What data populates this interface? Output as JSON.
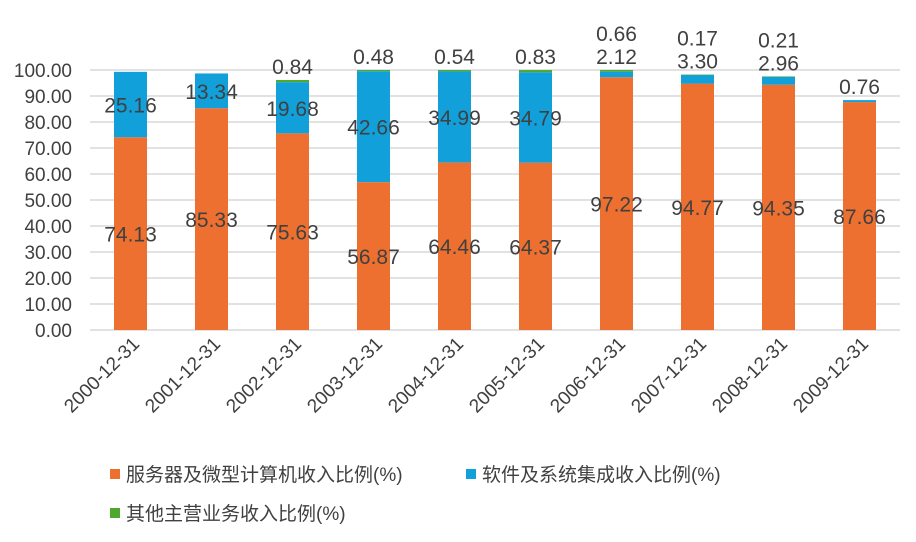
{
  "chart_data": {
    "type": "bar",
    "stacked": true,
    "title": "",
    "xlabel": "",
    "ylabel": "",
    "ylim": [
      0,
      100
    ],
    "yticks": [
      "0.00",
      "10.00",
      "20.00",
      "30.00",
      "40.00",
      "50.00",
      "60.00",
      "70.00",
      "80.00",
      "90.00",
      "100.00"
    ],
    "grid": true,
    "legend_position": "bottom",
    "categories": [
      "2000-12-31",
      "2001-12-31",
      "2002-12-31",
      "2003-12-31",
      "2004-12-31",
      "2005-12-31",
      "2006-12-31",
      "2007-12-31",
      "2008-12-31",
      "2009-12-31"
    ],
    "series": [
      {
        "name": "服务器及微型计算机收入比例(%)",
        "color": "#ED7031",
        "values": [
          74.13,
          85.33,
          75.63,
          56.87,
          64.46,
          64.37,
          97.22,
          94.77,
          94.35,
          87.66
        ]
      },
      {
        "name": "软件及系统集成收入比例(%)",
        "color": "#11A0DA",
        "values": [
          25.16,
          13.34,
          19.68,
          42.66,
          34.99,
          34.79,
          2.12,
          3.3,
          2.96,
          0.76
        ]
      },
      {
        "name": "其他主营业务收入比例(%)",
        "color": "#4EA72E",
        "values": [
          null,
          null,
          0.84,
          0.48,
          0.54,
          0.83,
          0.66,
          0.17,
          0.21,
          null
        ]
      }
    ]
  }
}
